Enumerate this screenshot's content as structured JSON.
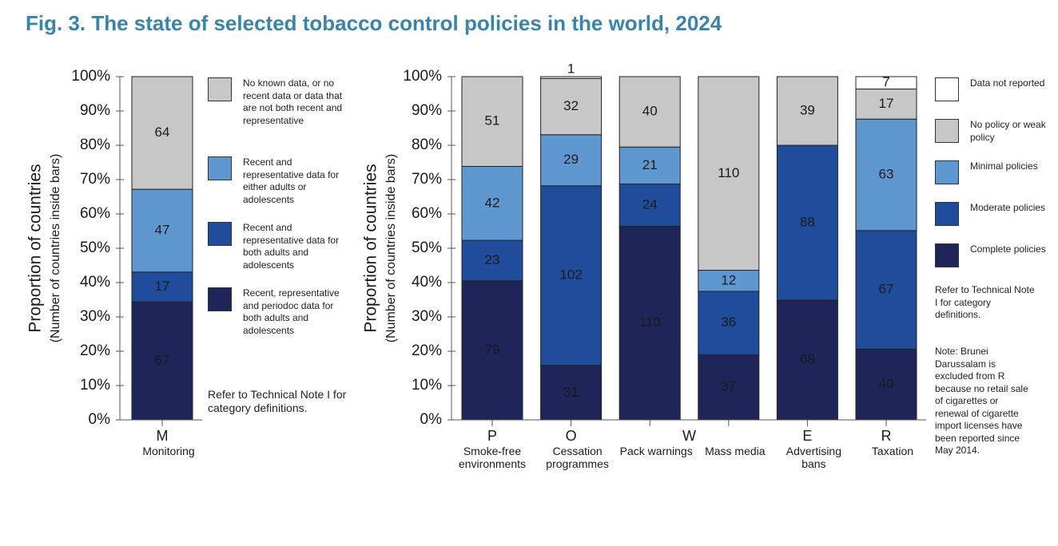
{
  "title": "Fig. 3. The state of selected tobacco control policies in the world, 2024",
  "chart_data": [
    {
      "type": "stacked-bar",
      "stacking": "percent",
      "y_label": "Proportion of countries",
      "y_sublabel": "(Number of countries inside bars)",
      "categories": [
        "M"
      ],
      "category_names": [
        "Monitoring"
      ],
      "ylim": [
        0,
        100
      ],
      "yticks": [
        {
          "value": 0,
          "label": "0%"
        },
        {
          "value": 10,
          "label": "10%"
        },
        {
          "value": 20,
          "label": "20%"
        },
        {
          "value": 30,
          "label": "30%"
        },
        {
          "value": 40,
          "label": "40%"
        },
        {
          "value": 50,
          "label": "50%"
        },
        {
          "value": 60,
          "label": "60%"
        },
        {
          "value": 70,
          "label": "70%"
        },
        {
          "value": 80,
          "label": "80%"
        },
        {
          "value": 90,
          "label": "90%"
        },
        {
          "value": 100,
          "label": "100%"
        }
      ],
      "series": [
        {
          "name": "Recent, representative and periodoc data for both adults and adolescents",
          "color": "#1e2559",
          "values": [
            67
          ]
        },
        {
          "name": "Recent and representative data for both adults and adolescents",
          "color": "#1f4d9b",
          "values": [
            17
          ]
        },
        {
          "name": "Recent and representative data for either adults or adolescents",
          "color": "#5f97d1",
          "values": [
            47
          ]
        },
        {
          "name": "No known data, or no recent data or data that are not both recent and representative",
          "color": "#c7c7c7",
          "values": [
            64
          ]
        }
      ],
      "notes": [
        "Refer to Technical Note I for category definitions."
      ]
    },
    {
      "type": "stacked-bar",
      "stacking": "percent",
      "y_label": "Proportion of countries",
      "y_sublabel": "(Number of countries inside bars)",
      "categories": [
        "P",
        "O",
        "W",
        null,
        "E",
        "R"
      ],
      "category_names": [
        "Smoke-free environments",
        "Cessation programmes",
        "Pack warnings",
        "Mass media",
        "Advertising bans",
        "Taxation"
      ],
      "ylim": [
        0,
        100
      ],
      "yticks": [
        {
          "value": 0,
          "label": "0%"
        },
        {
          "value": 10,
          "label": "10%"
        },
        {
          "value": 20,
          "label": "20%"
        },
        {
          "value": 30,
          "label": "30%"
        },
        {
          "value": 40,
          "label": "40%"
        },
        {
          "value": 50,
          "label": "50%"
        },
        {
          "value": 60,
          "label": "60%"
        },
        {
          "value": 70,
          "label": "70%"
        },
        {
          "value": 80,
          "label": "80%"
        },
        {
          "value": 90,
          "label": "90%"
        },
        {
          "value": 100,
          "label": "100%"
        }
      ],
      "series": [
        {
          "name": "Complete policies",
          "color": "#1e2559",
          "values": [
            79,
            31,
            110,
            37,
            68,
            40
          ]
        },
        {
          "name": "Moderate policies",
          "color": "#1f4d9b",
          "values": [
            23,
            102,
            24,
            36,
            88,
            67
          ]
        },
        {
          "name": "Minimal policies",
          "color": "#5f97d1",
          "values": [
            42,
            29,
            21,
            12,
            null,
            63
          ]
        },
        {
          "name": "No policy or weak policy",
          "color": "#c7c7c7",
          "values": [
            51,
            32,
            40,
            110,
            39,
            17
          ]
        },
        {
          "name": "Data not reported",
          "color": "#ffffff",
          "values": [
            null,
            1,
            null,
            null,
            null,
            7
          ]
        }
      ],
      "notes": [
        "Refer to Technical Note I for category definitions.",
        "Note: Brunei Darussalam is excluded from R because no retail sale of cigarettes or renewal of cigarette import licenses have been reported since May 2014."
      ]
    }
  ]
}
